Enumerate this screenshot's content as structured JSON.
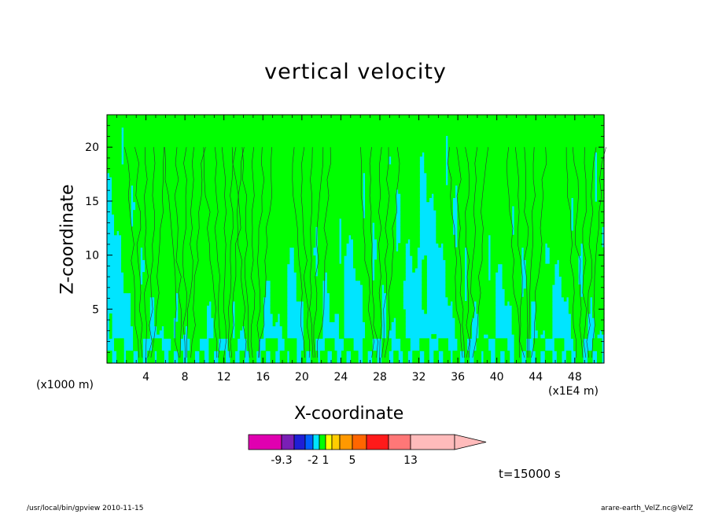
{
  "chart_data": {
    "type": "heatmap",
    "title": "vertical velocity",
    "xlabel": "X-coordinate",
    "ylabel": "Z-coordinate",
    "x_unit_left": "(x1000 m)",
    "x_unit_right": "(x1E4 m)",
    "xlim": [
      0,
      51
    ],
    "ylim": [
      0,
      23
    ],
    "x_ticks": [
      4,
      8,
      12,
      16,
      20,
      24,
      28,
      32,
      36,
      40,
      44,
      48
    ],
    "y_ticks": [
      5,
      10,
      15,
      20
    ],
    "colors": {
      "low": "#00e5ff",
      "high": "#00ff00",
      "contour": "#333333"
    },
    "updraft_centers_x": [
      4,
      8,
      12,
      15,
      21,
      28,
      37,
      43,
      49
    ],
    "colorbar": {
      "colors": [
        "#e000b0",
        "#7a1fb5",
        "#1f1fd6",
        "#0060ff",
        "#00e5ff",
        "#00ff00",
        "#ffff00",
        "#ffcc00",
        "#ff9900",
        "#ff6600",
        "#ff1a1a",
        "#ff7777",
        "#ffbbbb"
      ],
      "labels": [
        "-9.3",
        "-2",
        "1",
        "5",
        "13"
      ]
    },
    "time_label": "t=15000 s"
  },
  "footer": {
    "left": "/usr/local/bin/gpview  2010-11-15",
    "right": "arare-earth_VelZ.nc@VelZ"
  }
}
